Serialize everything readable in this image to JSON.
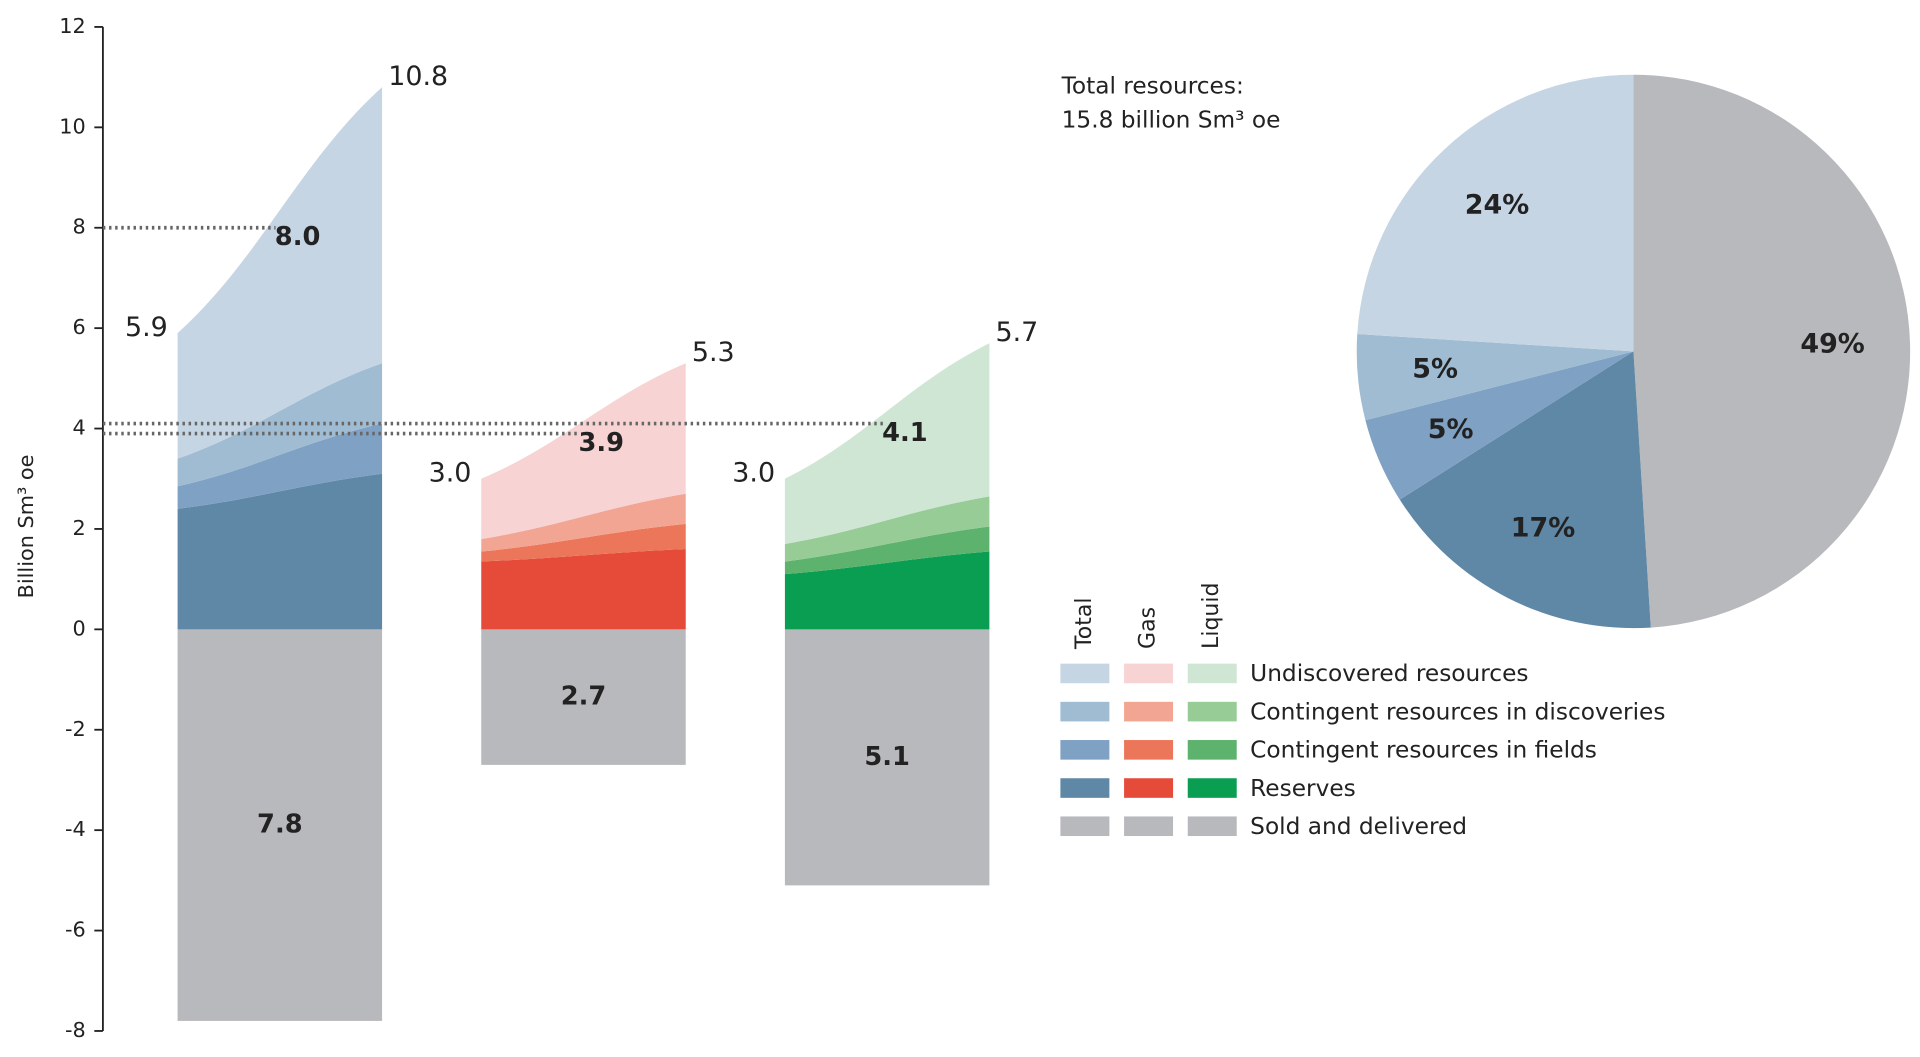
{
  "chart_data": [
    {
      "type": "range-area",
      "y_label": "Billion Sm³ oe",
      "ylim": [
        -8,
        12
      ],
      "yticks": [
        -8,
        -6,
        -4,
        -2,
        0,
        2,
        4,
        6,
        8,
        10,
        12
      ],
      "categories": [
        "Total",
        "Gas",
        "Liquid"
      ],
      "series": [
        {
          "name": "Undiscovered resources",
          "colors": [
            "#c5d5e3",
            "#f7d3d3",
            "#cfe6d4"
          ],
          "low": [
            2.5,
            1.2,
            1.3
          ],
          "high": [
            5.5,
            2.6,
            3.05
          ]
        },
        {
          "name": "Contingent resources in discoveries",
          "colors": [
            "#9fbcd3",
            "#f2a592",
            "#97cc97"
          ],
          "low": [
            0.55,
            0.25,
            0.35
          ],
          "high": [
            1.2,
            0.6,
            0.6
          ]
        },
        {
          "name": "Contingent resources in fields",
          "colors": [
            "#7fa1c4",
            "#ec7659",
            "#5db26d"
          ],
          "low": [
            0.45,
            0.2,
            0.25
          ],
          "high": [
            1.0,
            0.5,
            0.5
          ]
        },
        {
          "name": "Reserves",
          "colors": [
            "#5f87a6",
            "#e64b3a",
            "#0a9e52"
          ],
          "low": [
            2.4,
            1.35,
            1.1
          ],
          "high": [
            3.1,
            1.6,
            1.55
          ]
        }
      ],
      "sold": {
        "name": "Sold and delivered",
        "colors": [
          "#b8b9bc",
          "#b8b9bc",
          "#b8b9bc"
        ],
        "values": [
          -7.8,
          -2.7,
          -5.1
        ],
        "value_labels": [
          "7.8",
          "2.7",
          "5.1"
        ]
      },
      "low_totals": {
        "values": [
          5.9,
          3,
          3
        ],
        "value_labels": [
          "5.9",
          "3.0",
          "3.0"
        ]
      },
      "high_totals": {
        "values": [
          10.8,
          5.3,
          5.7
        ],
        "value_labels": [
          "10.8",
          "5.3",
          "5.7"
        ]
      },
      "expected": {
        "values": [
          8,
          3.9,
          4.1
        ],
        "value_labels": [
          "8.0",
          "3.9",
          "4.1"
        ]
      }
    },
    {
      "type": "pie",
      "title": [
        "Total resources:",
        "15.8 billion Sm³ oe"
      ],
      "values": [
        49,
        17,
        5,
        5,
        24
      ],
      "value_labels": [
        "49%",
        "17%",
        "5%",
        "5%",
        "24%"
      ],
      "colors": [
        "#b8b9bc",
        "#5f87a6",
        "#7fa1c4",
        "#9fbcd3",
        "#c5d5e3"
      ]
    }
  ]
}
